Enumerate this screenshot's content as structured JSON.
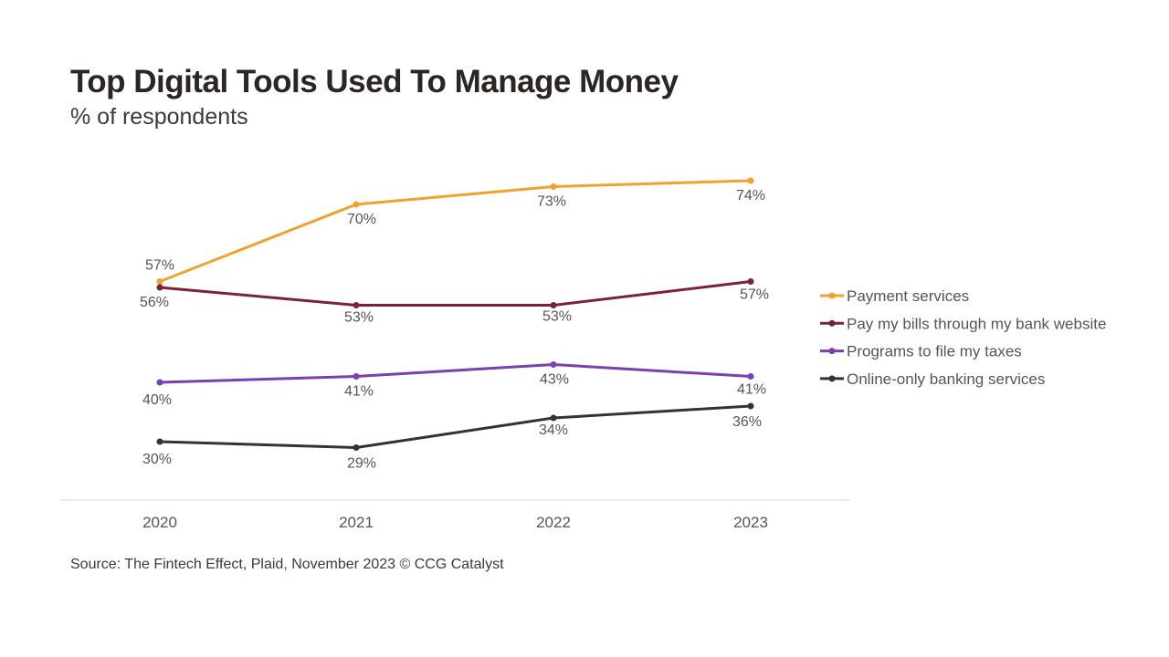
{
  "title": "Top Digital Tools Used To Manage Money",
  "subtitle": "% of respondents",
  "source": "Source: The Fintech Effect, Plaid, November 2023 © CCG Catalyst",
  "chart_data": {
    "type": "line",
    "x": [
      "2020",
      "2021",
      "2022",
      "2023"
    ],
    "series": [
      {
        "name": "Payment services",
        "color": "#f0a32a",
        "values": [
          57,
          70,
          73,
          74
        ]
      },
      {
        "name": "Pay my bills through my bank website",
        "color": "#7b2236",
        "values": [
          56,
          53,
          53,
          57
        ]
      },
      {
        "name": "Programs to file my taxes",
        "color": "#7a3fb0",
        "values": [
          40,
          41,
          43,
          41
        ]
      },
      {
        "name": "Online-only banking services",
        "color": "#333333",
        "values": [
          30,
          29,
          34,
          36
        ]
      }
    ],
    "data_label_suffix": "%",
    "grid": false,
    "legend_position": "right"
  }
}
